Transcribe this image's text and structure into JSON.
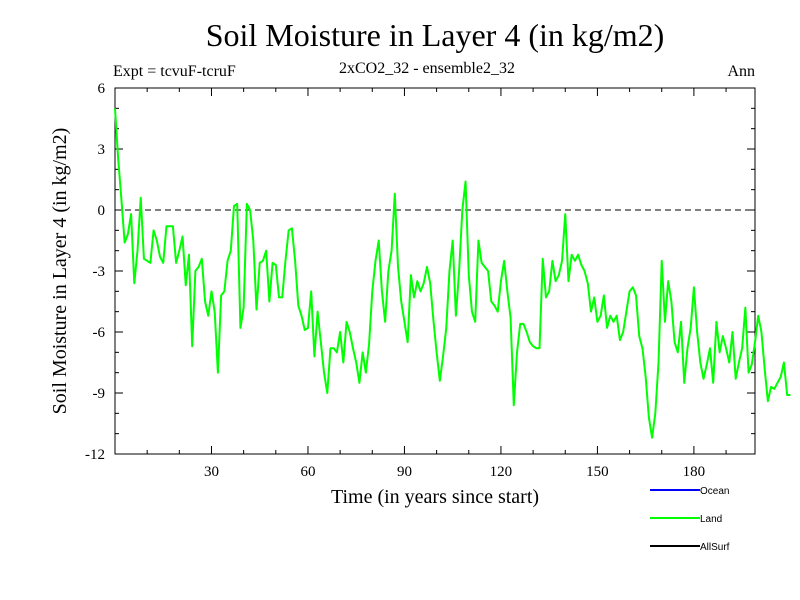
{
  "chart_data": {
    "type": "line",
    "title": "Soil Moisture in Layer 4 (in kg/m2)",
    "subtitle": "2xCO2_32 - ensemble2_32",
    "left_note": "Expt = tcvuF-tcruF",
    "right_note": "Ann",
    "xlabel": "Time (in years since start)",
    "ylabel": "Soil Moisture in Layer 4 (in kg/m2)",
    "xlim": [
      0,
      199
    ],
    "ylim": [
      -12,
      6
    ],
    "x_ticks": [
      30,
      60,
      90,
      120,
      150,
      180
    ],
    "y_ticks": [
      6,
      3,
      0,
      -3,
      -6,
      -9,
      -12
    ],
    "zero_line": true,
    "legend_placement": "bottom-right",
    "legend": [
      {
        "name": "Ocean",
        "color": "#0000ff"
      },
      {
        "name": "Land",
        "color": "#00ff00"
      },
      {
        "name": "AllSurf",
        "color": "#000000"
      }
    ],
    "series": [
      {
        "name": "Land",
        "color": "#00ff00",
        "x_start": 0,
        "x_step": 1,
        "values": [
          5.0,
          2.5,
          0.5,
          -1.6,
          -1.2,
          -0.2,
          -3.6,
          -2.0,
          0.6,
          -2.4,
          -2.5,
          -2.6,
          -1.0,
          -1.5,
          -2.3,
          -2.6,
          -0.8,
          -0.8,
          -0.8,
          -2.6,
          -2.0,
          -1.3,
          -3.7,
          -2.2,
          -6.7,
          -3.0,
          -2.8,
          -2.4,
          -4.5,
          -5.2,
          -4.0,
          -5.0,
          -8.0,
          -4.2,
          -4.0,
          -2.5,
          -2.0,
          0.2,
          0.3,
          -5.8,
          -4.8,
          0.3,
          0.0,
          -1.5,
          -4.9,
          -2.6,
          -2.5,
          -2.0,
          -4.5,
          -2.6,
          -2.7,
          -4.3,
          -4.3,
          -2.5,
          -1.0,
          -0.9,
          -2.5,
          -4.7,
          -5.2,
          -5.9,
          -5.8,
          -4.0,
          -7.2,
          -5.0,
          -6.5,
          -8.0,
          -9.0,
          -6.8,
          -6.8,
          -7.0,
          -6.0,
          -7.5,
          -5.5,
          -6.0,
          -6.8,
          -7.5,
          -8.5,
          -7.0,
          -8.0,
          -6.6,
          -4.0,
          -2.5,
          -1.5,
          -4.0,
          -5.5,
          -3.0,
          -2.0,
          0.8,
          -2.8,
          -4.5,
          -5.5,
          -6.5,
          -3.2,
          -4.3,
          -3.5,
          -4.0,
          -3.6,
          -2.8,
          -3.6,
          -5.4,
          -7.0,
          -8.4,
          -7.2,
          -5.8,
          -3.0,
          -1.5,
          -5.2,
          -3.0,
          0.0,
          1.4,
          -3.2,
          -5.0,
          -5.5,
          -1.5,
          -2.6,
          -2.8,
          -3.0,
          -4.5,
          -4.7,
          -5.0,
          -3.5,
          -2.5,
          -4.0,
          -5.3,
          -9.6,
          -7.0,
          -5.6,
          -5.6,
          -6.0,
          -6.5,
          -6.7,
          -6.8,
          -6.8,
          -2.4,
          -4.3,
          -4.0,
          -2.5,
          -3.5,
          -3.2,
          -2.5,
          -0.2,
          -3.5,
          -2.2,
          -2.5,
          -2.2,
          -2.7,
          -3.0,
          -3.6,
          -5.0,
          -4.3,
          -5.5,
          -5.2,
          -4.2,
          -5.8,
          -5.2,
          -5.5,
          -5.2,
          -6.4,
          -6.0,
          -5.0,
          -4.0,
          -3.8,
          -4.2,
          -6.2,
          -6.8,
          -8.2,
          -10.2,
          -11.2,
          -10.0,
          -7.5,
          -2.5,
          -5.5,
          -3.5,
          -4.5,
          -6.5,
          -7.0,
          -5.5,
          -8.5,
          -6.8,
          -5.8,
          -3.8,
          -6.0,
          -7.5,
          -8.3,
          -7.6,
          -6.8,
          -8.5,
          -5.5,
          -7.0,
          -6.2,
          -6.8,
          -7.5,
          -6.0,
          -8.3,
          -7.5,
          -6.8,
          -4.8,
          -8.0,
          -7.6,
          -6.5,
          -5.2,
          -6.0,
          -7.8,
          -9.4,
          -8.7,
          -8.8,
          -8.5,
          -8.2,
          -7.5,
          -9.1,
          -9.1
        ]
      }
    ]
  }
}
